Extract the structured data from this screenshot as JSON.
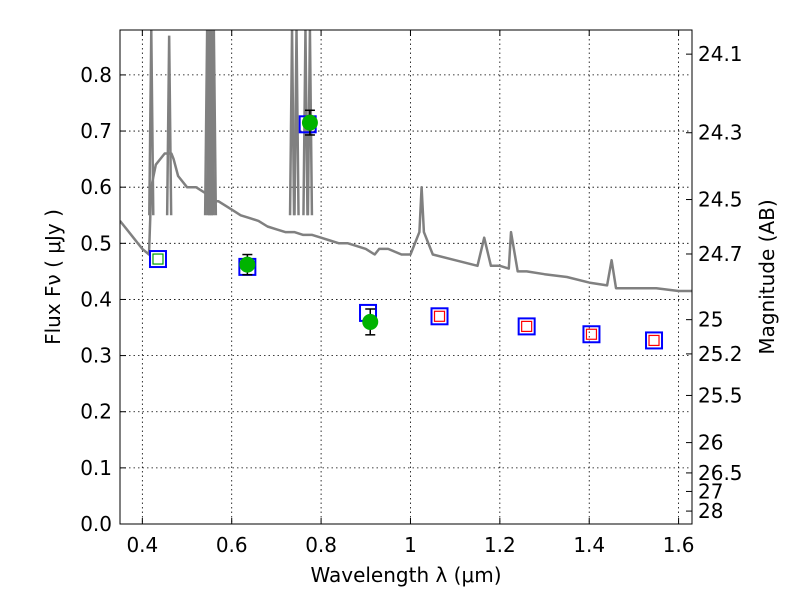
{
  "chart_data": {
    "type": "scatter",
    "title": "",
    "xlabel": "Wavelength  λ (μm)",
    "ylabel": "Flux  Fν  ( μJy )",
    "ylabel_right": "Magnitude (AB)",
    "xlim": [
      0.35,
      1.63
    ],
    "ylim": [
      0.0,
      0.88
    ],
    "grid": true,
    "grid_style": "dotted",
    "x_ticks": [
      0.4,
      0.6,
      0.8,
      1.0,
      1.2,
      1.4,
      1.6
    ],
    "x_tick_labels": [
      "0.4",
      "0.6",
      "0.8",
      "1",
      "1.2",
      "1.4",
      "1.6"
    ],
    "y_ticks": [
      0.0,
      0.1,
      0.2,
      0.3,
      0.4,
      0.5,
      0.6,
      0.7,
      0.8
    ],
    "y_tick_labels": [
      "0.0",
      "0.1",
      "0.2",
      "0.3",
      "0.4",
      "0.5",
      "0.6",
      "0.7",
      "0.8"
    ],
    "right_ticks": [
      {
        "label": "24.1",
        "flux": 0.837
      },
      {
        "label": "24.3",
        "flux": 0.697
      },
      {
        "label": "24.5",
        "flux": 0.578
      },
      {
        "label": "24.7",
        "flux": 0.481
      },
      {
        "label": "25",
        "flux": 0.364
      },
      {
        "label": "25.2",
        "flux": 0.303
      },
      {
        "label": "25.5",
        "flux": 0.229
      },
      {
        "label": "26",
        "flux": 0.145
      },
      {
        "label": "26.5",
        "flux": 0.091
      },
      {
        "label": "27",
        "flux": 0.058
      },
      {
        "label": "28",
        "flux": 0.023
      }
    ],
    "colors": {
      "sed": "#808080",
      "observed": "#00b300",
      "model_box": "#0000ff",
      "model_inner": "#ff0000",
      "errorbar": "#000000",
      "grid": "#000000"
    },
    "series": [
      {
        "name": "",
        "kind": "sed_line",
        "x": [
          0.35,
          0.38,
          0.4,
          0.415,
          0.42,
          0.425,
          0.43,
          0.44,
          0.45,
          0.46,
          0.465,
          0.47,
          0.48,
          0.5,
          0.52,
          0.54,
          0.55,
          0.56,
          0.57,
          0.6,
          0.62,
          0.64,
          0.66,
          0.68,
          0.7,
          0.72,
          0.74,
          0.76,
          0.78,
          0.8,
          0.82,
          0.84,
          0.86,
          0.88,
          0.9,
          0.92,
          0.93,
          0.95,
          0.98,
          1.0,
          1.02,
          1.025,
          1.03,
          1.05,
          1.1,
          1.15,
          1.165,
          1.18,
          1.2,
          1.22,
          1.225,
          1.24,
          1.26,
          1.3,
          1.35,
          1.4,
          1.44,
          1.45,
          1.46,
          1.5,
          1.55,
          1.6,
          1.63
        ],
        "y": [
          0.54,
          0.51,
          0.49,
          0.48,
          0.6,
          0.62,
          0.64,
          0.65,
          0.66,
          0.66,
          0.66,
          0.65,
          0.62,
          0.6,
          0.6,
          0.59,
          0.58,
          0.575,
          0.575,
          0.56,
          0.55,
          0.545,
          0.54,
          0.53,
          0.525,
          0.52,
          0.52,
          0.515,
          0.515,
          0.51,
          0.505,
          0.5,
          0.5,
          0.495,
          0.49,
          0.48,
          0.49,
          0.49,
          0.48,
          0.48,
          0.52,
          0.6,
          0.52,
          0.48,
          0.47,
          0.46,
          0.51,
          0.46,
          0.46,
          0.455,
          0.52,
          0.45,
          0.45,
          0.445,
          0.44,
          0.43,
          0.425,
          0.47,
          0.42,
          0.42,
          0.42,
          0.415,
          0.415
        ]
      },
      {
        "name": "",
        "kind": "sed_spikes",
        "x": [
          0.42,
          0.46,
          0.545,
          0.55,
          0.555,
          0.56,
          0.735,
          0.745,
          0.765,
          0.775
        ],
        "y": [
          0.88,
          0.87,
          0.88,
          0.88,
          0.88,
          0.88,
          0.88,
          0.88,
          0.88,
          0.88
        ]
      },
      {
        "name": "",
        "kind": "observed",
        "x": [
          0.635,
          0.775,
          0.91
        ],
        "y": [
          0.462,
          0.715,
          0.36
        ],
        "err": [
          0.018,
          0.022,
          0.023
        ]
      },
      {
        "name": "",
        "kind": "model_boxes",
        "x": [
          0.435,
          0.635,
          0.77,
          0.905,
          1.065,
          1.26,
          1.405,
          1.545
        ],
        "y": [
          0.472,
          0.458,
          0.712,
          0.376,
          0.37,
          0.352,
          0.338,
          0.327
        ]
      },
      {
        "name": "",
        "kind": "inner_boxes",
        "x": [
          0.435,
          1.065,
          1.26,
          1.405,
          1.545
        ],
        "y": [
          0.472,
          0.37,
          0.352,
          0.338,
          0.327
        ],
        "colors": [
          "#00a000",
          "#ff0000",
          "#ff0000",
          "#ff0000",
          "#ff0000"
        ]
      }
    ]
  }
}
